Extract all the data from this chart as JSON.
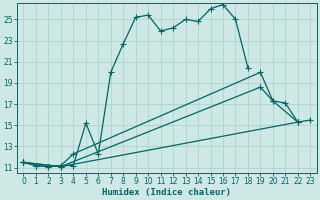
{
  "bg_color": "#cde8e5",
  "grid_color": "#aacfcc",
  "line_color": "#006666",
  "xlabel": "Humidex (Indice chaleur)",
  "xlim": [
    -0.5,
    23.5
  ],
  "ylim": [
    10.5,
    26.5
  ],
  "xticks": [
    0,
    1,
    2,
    3,
    4,
    5,
    6,
    7,
    8,
    9,
    10,
    11,
    12,
    13,
    14,
    15,
    16,
    17,
    18,
    19,
    20,
    21,
    22,
    23
  ],
  "yticks": [
    11,
    13,
    15,
    17,
    19,
    21,
    23,
    25
  ],
  "line1_x": [
    0,
    1,
    2,
    3,
    4,
    5,
    6,
    7,
    8,
    9,
    10,
    11,
    12,
    13,
    14,
    15,
    16,
    17,
    18
  ],
  "line1_y": [
    11.5,
    11.2,
    11.1,
    11.2,
    11.2,
    15.2,
    12.3,
    20.0,
    22.7,
    25.2,
    25.4,
    23.9,
    24.2,
    25.0,
    24.8,
    26.0,
    26.4,
    25.0,
    20.4
  ],
  "line2_x": [
    0,
    1,
    2,
    3,
    4,
    19,
    20,
    21,
    22
  ],
  "line2_y": [
    11.5,
    11.2,
    11.1,
    11.2,
    12.3,
    20.0,
    17.3,
    17.1,
    15.3
  ],
  "line3_x": [
    0,
    3,
    19,
    20,
    22
  ],
  "line3_y": [
    11.5,
    11.1,
    18.6,
    17.3,
    15.3
  ],
  "line4_x": [
    0,
    3,
    22,
    23
  ],
  "line4_y": [
    11.5,
    11.1,
    15.3,
    15.5
  ]
}
